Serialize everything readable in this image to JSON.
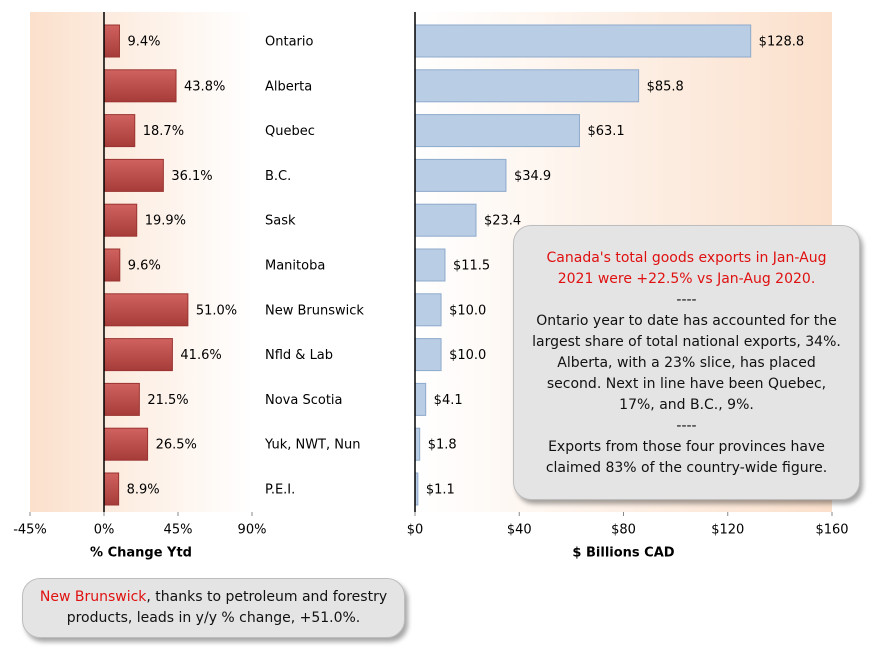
{
  "chart_data": [
    {
      "type": "bar",
      "orientation": "horizontal",
      "x_label": "% Change Ytd",
      "categories": [
        "Ontario",
        "Alberta",
        "Quebec",
        "B.C.",
        "Sask",
        "Manitoba",
        "New Brunswick",
        "Nfld & Lab",
        "Nova Scotia",
        "Yuk, NWT, Nun",
        "P.E.I."
      ],
      "values": [
        9.4,
        43.8,
        18.7,
        36.1,
        19.9,
        9.6,
        51.0,
        41.6,
        21.5,
        26.5,
        8.9
      ],
      "value_labels": [
        "9.4%",
        "43.8%",
        "18.7%",
        "36.1%",
        "19.9%",
        "9.6%",
        "51.0%",
        "41.6%",
        "21.5%",
        "26.5%",
        "8.9%"
      ],
      "color": "#c0504d",
      "xlim": [
        -45,
        90
      ],
      "xticks": [
        {
          "value": -45,
          "label": "-45%"
        },
        {
          "value": 0,
          "label": "0%"
        },
        {
          "value": 45,
          "label": "45%"
        },
        {
          "value": 90,
          "label": "90%"
        }
      ],
      "annotation": {
        "highlight": "New Brunswick",
        "text": ", thanks to petroleum and forestry products, leads in y/y % change, +51.0%."
      }
    },
    {
      "type": "bar",
      "orientation": "horizontal",
      "x_label": "$ Billions CAD",
      "values": [
        128.8,
        85.8,
        63.1,
        34.9,
        23.4,
        11.5,
        10.0,
        10.0,
        4.1,
        1.8,
        1.1
      ],
      "value_labels": [
        "$128.8",
        "$85.8",
        "$63.1",
        "$34.9",
        "$23.4",
        "$11.5",
        "$10.0",
        "$10.0",
        "$4.1",
        "$1.8",
        "$1.1"
      ],
      "color": "#b9cde5",
      "xlim": [
        0,
        160
      ],
      "xticks": [
        {
          "value": 0,
          "label": "$0"
        },
        {
          "value": 40,
          "label": "$40"
        },
        {
          "value": 80,
          "label": "$80"
        },
        {
          "value": 120,
          "label": "$120"
        },
        {
          "value": 160,
          "label": "$160"
        }
      ],
      "annotation": {
        "highlight": "Canada's total goods exports in Jan-Aug 2021 were +22.5% vs Jan-Aug 2020.",
        "paragraphs": [
          "----",
          "Ontario year to date has accounted for the largest share of total national exports, 34%. Alberta, with a 23% slice, has placed second. Next in line have been Quebec, 17%, and B.C., 9%.",
          "----",
          "Exports from those four provinces have claimed 83% of the country-wide figure."
        ]
      }
    }
  ]
}
